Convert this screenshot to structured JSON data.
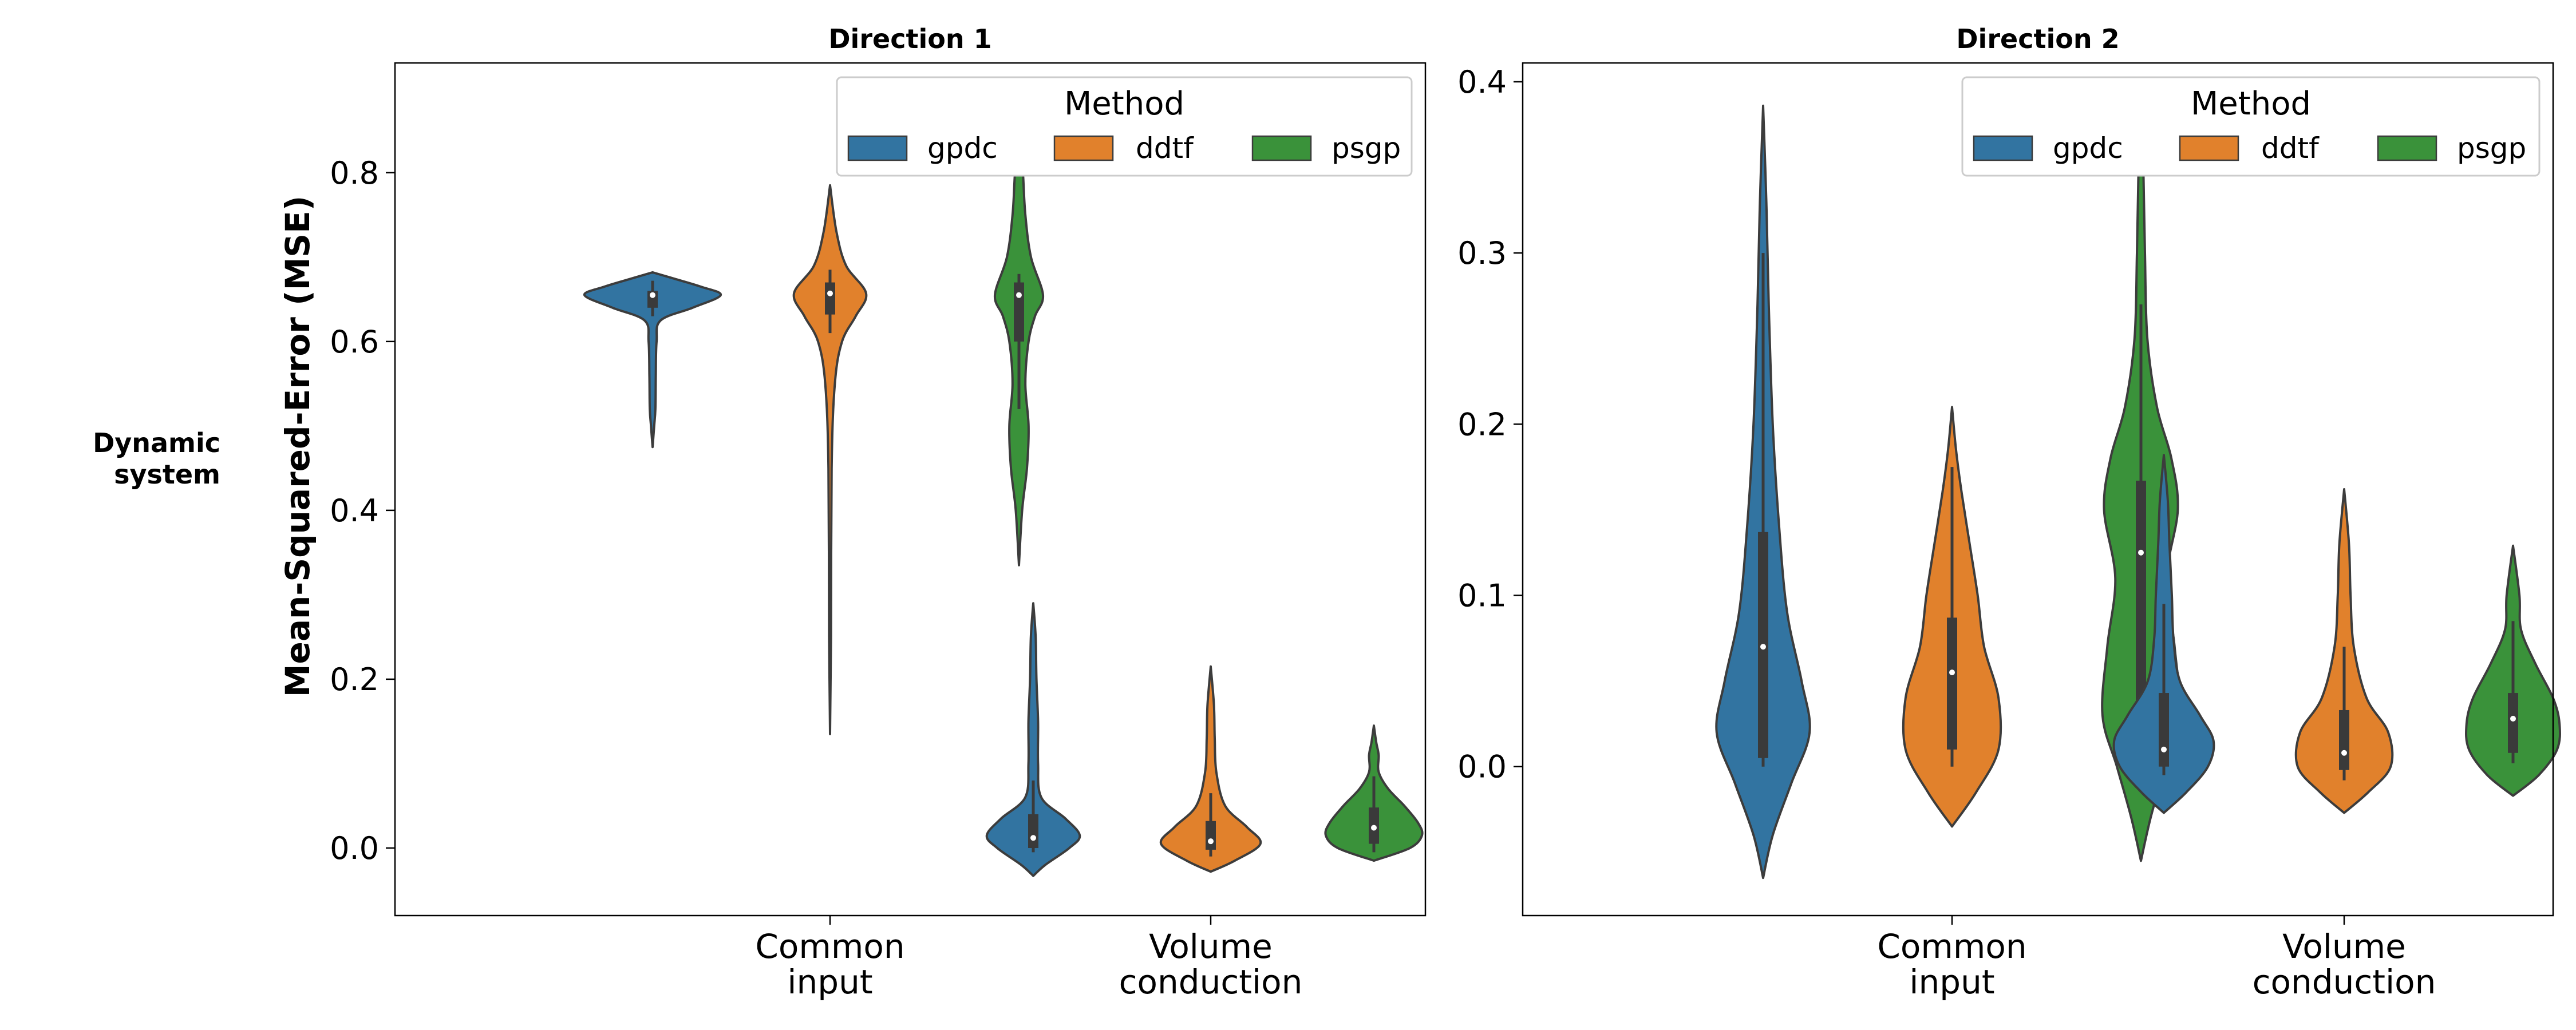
{
  "row_label": [
    "Dynamic",
    "system"
  ],
  "y_axis_label": "Mean-Squared-Error (MSE)",
  "legend": {
    "title": "Method"
  },
  "colors": {
    "gpdc": "#3274a1",
    "ddtf": "#e1812c",
    "psgp": "#3a923a",
    "edge": "#3c3c3c",
    "box": "#3a3a3a"
  },
  "chart_data": [
    {
      "type": "violin",
      "title": "Direction 1",
      "categories": [
        [
          "Common",
          "input"
        ],
        [
          "Volume",
          "conduction"
        ]
      ],
      "methods": [
        "gpdc",
        "ddtf",
        "psgp"
      ],
      "ylim": [
        -0.08,
        0.93
      ],
      "yticks": [
        "0.0",
        "0.2",
        "0.4",
        "0.6",
        "0.8"
      ],
      "grid": false,
      "legend_placement": "top-right",
      "violins": [
        {
          "category": 0,
          "method": "gpdc",
          "median": 0.655,
          "q1": 0.64,
          "q3": 0.66,
          "whisker_low": 0.63,
          "whisker_high": 0.672,
          "profile": [
            [
              0.475,
              0
            ],
            [
              0.5,
              0.02
            ],
            [
              0.52,
              0.035
            ],
            [
              0.56,
              0.04
            ],
            [
              0.6,
              0.05
            ],
            [
              0.625,
              0.1
            ],
            [
              0.64,
              0.5
            ],
            [
              0.655,
              0.85
            ],
            [
              0.665,
              0.6
            ],
            [
              0.675,
              0.25
            ],
            [
              0.682,
              0
            ]
          ]
        },
        {
          "category": 0,
          "method": "ddtf",
          "median": 0.657,
          "q1": 0.632,
          "q3": 0.67,
          "whisker_low": 0.61,
          "whisker_high": 0.685,
          "profile": [
            [
              0.135,
              0
            ],
            [
              0.25,
              0.012
            ],
            [
              0.45,
              0.02
            ],
            [
              0.55,
              0.06
            ],
            [
              0.6,
              0.15
            ],
            [
              0.63,
              0.32
            ],
            [
              0.657,
              0.45
            ],
            [
              0.69,
              0.2
            ],
            [
              0.73,
              0.08
            ],
            [
              0.785,
              0
            ]
          ]
        },
        {
          "category": 0,
          "method": "psgp",
          "median": 0.655,
          "q1": 0.6,
          "q3": 0.67,
          "whisker_low": 0.52,
          "whisker_high": 0.68,
          "profile": [
            [
              0.335,
              0
            ],
            [
              0.4,
              0.04
            ],
            [
              0.45,
              0.1
            ],
            [
              0.5,
              0.12
            ],
            [
              0.55,
              0.08
            ],
            [
              0.6,
              0.12
            ],
            [
              0.63,
              0.2
            ],
            [
              0.655,
              0.3
            ],
            [
              0.7,
              0.15
            ],
            [
              0.75,
              0.08
            ],
            [
              0.8,
              0.05
            ],
            [
              0.885,
              0
            ]
          ]
        },
        {
          "category": 1,
          "method": "gpdc",
          "median": 0.012,
          "q1": 0.0,
          "q3": 0.04,
          "whisker_low": -0.005,
          "whisker_high": 0.08,
          "profile": [
            [
              -0.033,
              0
            ],
            [
              -0.02,
              0.15
            ],
            [
              0.0,
              0.45
            ],
            [
              0.015,
              0.58
            ],
            [
              0.035,
              0.4
            ],
            [
              0.06,
              0.1
            ],
            [
              0.1,
              0.06
            ],
            [
              0.15,
              0.06
            ],
            [
              0.2,
              0.04
            ],
            [
              0.25,
              0.03
            ],
            [
              0.29,
              0
            ]
          ]
        },
        {
          "category": 1,
          "method": "ddtf",
          "median": 0.008,
          "q1": -0.002,
          "q3": 0.032,
          "whisker_low": -0.01,
          "whisker_high": 0.065,
          "profile": [
            [
              -0.028,
              0
            ],
            [
              -0.015,
              0.3
            ],
            [
              0.005,
              0.62
            ],
            [
              0.025,
              0.45
            ],
            [
              0.05,
              0.18
            ],
            [
              0.09,
              0.07
            ],
            [
              0.13,
              0.05
            ],
            [
              0.17,
              0.04
            ],
            [
              0.215,
              0
            ]
          ]
        },
        {
          "category": 1,
          "method": "psgp",
          "median": 0.024,
          "q1": 0.005,
          "q3": 0.048,
          "whisker_low": -0.005,
          "whisker_high": 0.085,
          "profile": [
            [
              -0.015,
              0
            ],
            [
              0.0,
              0.45
            ],
            [
              0.015,
              0.6
            ],
            [
              0.03,
              0.55
            ],
            [
              0.05,
              0.38
            ],
            [
              0.07,
              0.18
            ],
            [
              0.09,
              0.06
            ],
            [
              0.11,
              0.06
            ],
            [
              0.125,
              0.03
            ],
            [
              0.145,
              0
            ]
          ]
        }
      ]
    },
    {
      "type": "violin",
      "title": "Direction 2",
      "categories": [
        [
          "Common",
          "input"
        ],
        [
          "Volume",
          "conduction"
        ]
      ],
      "methods": [
        "gpdc",
        "ddtf",
        "psgp"
      ],
      "ylim": [
        -0.087,
        0.411
      ],
      "yticks": [
        "0.0",
        "0.1",
        "0.2",
        "0.3",
        "0.4"
      ],
      "grid": false,
      "legend_placement": "top-right",
      "violins": [
        {
          "category": 0,
          "method": "gpdc",
          "median": 0.07,
          "q1": 0.005,
          "q3": 0.137,
          "whisker_low": 0.0,
          "whisker_high": 0.3,
          "profile": [
            [
              -0.065,
              0
            ],
            [
              -0.04,
              0.12
            ],
            [
              -0.01,
              0.35
            ],
            [
              0.02,
              0.58
            ],
            [
              0.05,
              0.48
            ],
            [
              0.09,
              0.3
            ],
            [
              0.14,
              0.2
            ],
            [
              0.2,
              0.12
            ],
            [
              0.27,
              0.07
            ],
            [
              0.33,
              0.04
            ],
            [
              0.386,
              0
            ]
          ]
        },
        {
          "category": 0,
          "method": "ddtf",
          "median": 0.055,
          "q1": 0.01,
          "q3": 0.087,
          "whisker_low": 0.0,
          "whisker_high": 0.175,
          "profile": [
            [
              -0.035,
              0
            ],
            [
              -0.015,
              0.3
            ],
            [
              0.01,
              0.58
            ],
            [
              0.04,
              0.58
            ],
            [
              0.07,
              0.4
            ],
            [
              0.1,
              0.32
            ],
            [
              0.13,
              0.22
            ],
            [
              0.16,
              0.12
            ],
            [
              0.185,
              0.05
            ],
            [
              0.21,
              0
            ]
          ]
        },
        {
          "category": 0,
          "method": "psgp",
          "median": 0.125,
          "q1": 0.035,
          "q3": 0.167,
          "whisker_low": 0.005,
          "whisker_high": 0.27,
          "profile": [
            [
              -0.055,
              0
            ],
            [
              -0.03,
              0.12
            ],
            [
              0.0,
              0.3
            ],
            [
              0.03,
              0.48
            ],
            [
              0.07,
              0.42
            ],
            [
              0.11,
              0.32
            ],
            [
              0.15,
              0.46
            ],
            [
              0.18,
              0.38
            ],
            [
              0.21,
              0.2
            ],
            [
              0.25,
              0.08
            ],
            [
              0.3,
              0.05
            ],
            [
              0.35,
              0.03
            ],
            [
              0.387,
              0
            ]
          ]
        },
        {
          "category": 1,
          "method": "gpdc",
          "median": 0.01,
          "q1": 0.0,
          "q3": 0.043,
          "whisker_low": -0.005,
          "whisker_high": 0.095,
          "profile": [
            [
              -0.027,
              0
            ],
            [
              -0.015,
              0.28
            ],
            [
              0.0,
              0.55
            ],
            [
              0.015,
              0.62
            ],
            [
              0.03,
              0.45
            ],
            [
              0.05,
              0.2
            ],
            [
              0.075,
              0.12
            ],
            [
              0.1,
              0.1
            ],
            [
              0.13,
              0.07
            ],
            [
              0.155,
              0.05
            ],
            [
              0.182,
              0
            ]
          ]
        },
        {
          "category": 1,
          "method": "ddtf",
          "median": 0.008,
          "q1": -0.002,
          "q3": 0.033,
          "whisker_low": -0.008,
          "whisker_high": 0.07,
          "profile": [
            [
              -0.027,
              0
            ],
            [
              -0.015,
              0.3
            ],
            [
              0.0,
              0.58
            ],
            [
              0.02,
              0.55
            ],
            [
              0.04,
              0.28
            ],
            [
              0.07,
              0.12
            ],
            [
              0.1,
              0.08
            ],
            [
              0.13,
              0.06
            ],
            [
              0.162,
              0
            ]
          ]
        },
        {
          "category": 1,
          "method": "psgp",
          "median": 0.028,
          "q1": 0.008,
          "q3": 0.043,
          "whisker_low": 0.002,
          "whisker_high": 0.085,
          "profile": [
            [
              -0.017,
              0
            ],
            [
              -0.005,
              0.32
            ],
            [
              0.01,
              0.55
            ],
            [
              0.025,
              0.58
            ],
            [
              0.04,
              0.5
            ],
            [
              0.06,
              0.28
            ],
            [
              0.08,
              0.1
            ],
            [
              0.1,
              0.08
            ],
            [
              0.129,
              0
            ]
          ]
        }
      ]
    }
  ]
}
